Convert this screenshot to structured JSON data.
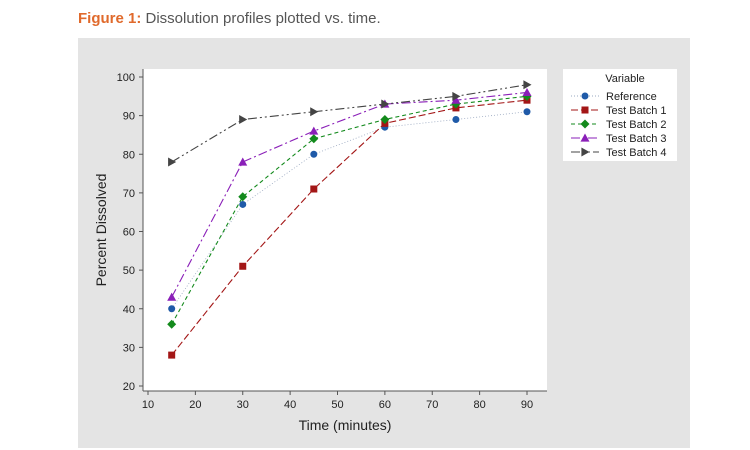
{
  "figure": {
    "label": "Figure 1:",
    "caption": "Dissolution profiles plotted vs. time."
  },
  "chart_data": {
    "type": "line",
    "title": "",
    "xlabel": "Time (minutes)",
    "ylabel": "Percent Dissolved",
    "xlim": [
      10,
      90
    ],
    "ylim": [
      20,
      100
    ],
    "xticks": [
      10,
      20,
      30,
      40,
      50,
      60,
      70,
      80,
      90
    ],
    "yticks": [
      20,
      30,
      40,
      50,
      60,
      70,
      80,
      90,
      100
    ],
    "grid": false,
    "legend": {
      "title": "Variable",
      "placement": "right"
    },
    "x": [
      15,
      30,
      45,
      60,
      75,
      90
    ],
    "series": [
      {
        "name": "Reference",
        "values": [
          40,
          67,
          80,
          87,
          89,
          91
        ],
        "color": "#1f5aa8",
        "marker": "circle",
        "dash": "1,2"
      },
      {
        "name": "Test Batch 1",
        "values": [
          28,
          51,
          71,
          88,
          92,
          94
        ],
        "color": "#a31616",
        "marker": "square",
        "dash": "7,3"
      },
      {
        "name": "Test Batch 2",
        "values": [
          36,
          69,
          84,
          89,
          93,
          95
        ],
        "color": "#138a1c",
        "marker": "diamond",
        "dash": "4,3"
      },
      {
        "name": "Test Batch 3",
        "values": [
          43,
          78,
          86,
          93,
          94,
          96
        ],
        "color": "#8a1fb8",
        "marker": "triangle-up",
        "dash": "9,3,2,3"
      },
      {
        "name": "Test Batch 4",
        "values": [
          78,
          89,
          91,
          93,
          95,
          98
        ],
        "color": "#444444",
        "marker": "triangle-right",
        "dash": "9,3,2,3,2,3"
      }
    ]
  }
}
